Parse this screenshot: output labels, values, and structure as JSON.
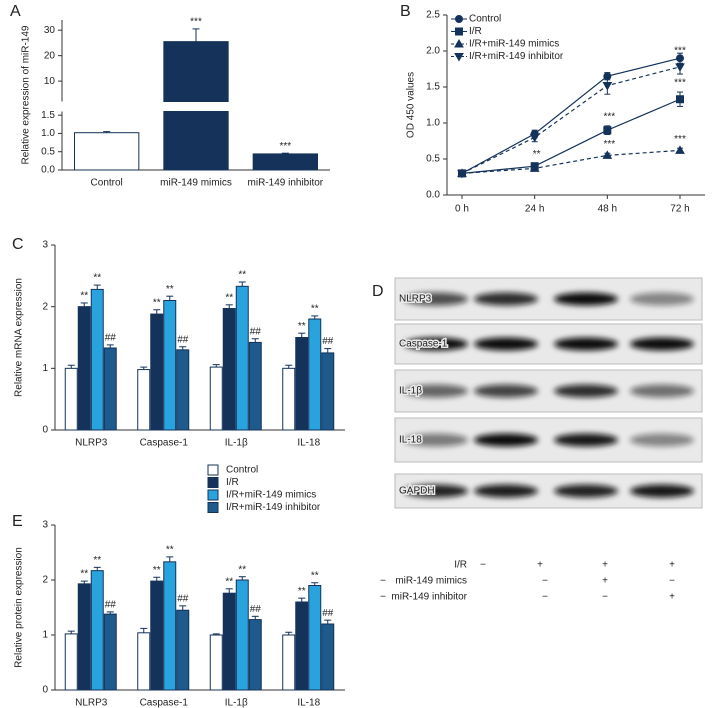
{
  "chart_data": [
    {
      "type": "bar",
      "panel": "A",
      "ylabel": "Relative expression of miR-149",
      "categories": [
        "Control",
        "miR-149 mimics",
        "miR-149 inhibitor"
      ],
      "values": [
        1.02,
        25.5,
        0.44
      ],
      "errors": [
        0.03,
        5.0,
        0.02
      ],
      "annotations": [
        null,
        "***",
        "***"
      ],
      "colors": [
        "#ffffff",
        "#14325a",
        "#14325a"
      ],
      "ylim": [
        0,
        34
      ],
      "y_break": [
        1.6,
        2
      ],
      "yticks": [
        {
          "value": 0,
          "label": "0.0"
        },
        {
          "value": 0.5,
          "label": "0.5"
        },
        {
          "value": 1,
          "label": "1.0"
        },
        {
          "value": 1.5,
          "label": "1.5"
        },
        10,
        20,
        30
      ],
      "legend": "none"
    },
    {
      "type": "line",
      "panel": "B",
      "ylabel": "OD 450 values",
      "categories": [
        "0 h",
        "24 h",
        "48 h",
        "72 h"
      ],
      "series": [
        {
          "name": "Control",
          "color": "#14325a",
          "marker": "circle",
          "dash": false,
          "values": [
            0.3,
            0.85,
            1.65,
            1.9
          ],
          "errors": [
            0.02,
            0.05,
            0.05,
            0.07
          ],
          "annotations": [
            null,
            null,
            null,
            null
          ]
        },
        {
          "name": "I/R",
          "color": "#14325a",
          "marker": "square",
          "dash": false,
          "values": [
            0.3,
            0.4,
            0.9,
            1.33
          ],
          "errors": [
            0.02,
            0.04,
            0.06,
            0.1
          ],
          "annotations": [
            null,
            "**",
            "***",
            "***"
          ]
        },
        {
          "name": "I/R+miR-149 mimics",
          "color": "#14325a",
          "marker": "triangle-up",
          "dash": true,
          "values": [
            0.3,
            0.37,
            0.55,
            0.62
          ],
          "errors": [
            0.02,
            0.03,
            0.03,
            0.03
          ],
          "annotations": [
            null,
            null,
            "***",
            "***"
          ]
        },
        {
          "name": "I/R+miR-149 inhibitor",
          "color": "#14325a",
          "marker": "triangle-down",
          "dash": true,
          "values": [
            0.3,
            0.8,
            1.52,
            1.78
          ],
          "errors": [
            0.02,
            0.06,
            0.12,
            0.1
          ],
          "annotations": [
            null,
            null,
            null,
            "***"
          ]
        }
      ],
      "ylim": [
        0,
        2.5
      ],
      "yticks": [
        {
          "value": 0,
          "label": "0.0"
        },
        {
          "value": 0.5,
          "label": "0.5"
        },
        {
          "value": 1,
          "label": "1.0"
        },
        {
          "value": 1.5,
          "label": "1.5"
        },
        {
          "value": 2,
          "label": "2.0"
        },
        {
          "value": 2.5,
          "label": "2.5"
        }
      ],
      "legend": "upper left"
    },
    {
      "type": "bar",
      "panel": "C",
      "ylabel": "Relative mRNA expression",
      "categories": [
        "NLRP3",
        "Caspase-1",
        "IL-1β",
        "IL-18"
      ],
      "series": [
        {
          "name": "Control",
          "color": "#ffffff",
          "values": [
            1.0,
            0.98,
            1.02,
            1.0
          ],
          "errors": [
            0.05,
            0.04,
            0.04,
            0.05
          ],
          "annotations": [
            null,
            null,
            null,
            null
          ]
        },
        {
          "name": "I/R",
          "color": "#14325a",
          "values": [
            2.0,
            1.88,
            1.97,
            1.5
          ],
          "errors": [
            0.06,
            0.07,
            0.06,
            0.07
          ],
          "annotations": [
            "**",
            "**",
            "**",
            "**"
          ]
        },
        {
          "name": "I/R+miR-149 mimics",
          "color": "#29a3de",
          "values": [
            2.28,
            2.1,
            2.33,
            1.8
          ],
          "errors": [
            0.07,
            0.07,
            0.07,
            0.05
          ],
          "annotations": [
            "**",
            "**",
            "**",
            "**"
          ]
        },
        {
          "name": "I/R+miR-149 inhibitor",
          "color": "#1e5a8c",
          "values": [
            1.33,
            1.3,
            1.42,
            1.25
          ],
          "errors": [
            0.05,
            0.05,
            0.06,
            0.07
          ],
          "annotations": [
            "##",
            "##",
            "##",
            "##"
          ]
        }
      ],
      "ylim": [
        0,
        3
      ],
      "yticks": [
        0,
        1,
        2,
        3
      ],
      "legend": "none"
    },
    {
      "type": "bar",
      "panel": "E",
      "ylabel": "Relative protein expression",
      "categories": [
        "NLRP3",
        "Caspase-1",
        "IL-1β",
        "IL-18"
      ],
      "series": [
        {
          "name": "Control",
          "color": "#ffffff",
          "values": [
            1.02,
            1.04,
            1.0,
            1.0
          ],
          "errors": [
            0.05,
            0.08,
            0.02,
            0.05
          ],
          "annotations": [
            null,
            null,
            null,
            null
          ]
        },
        {
          "name": "I/R",
          "color": "#14325a",
          "values": [
            1.93,
            1.98,
            1.76,
            1.6
          ],
          "errors": [
            0.05,
            0.07,
            0.08,
            0.07
          ],
          "annotations": [
            "**",
            "**",
            "**",
            "**"
          ]
        },
        {
          "name": "I/R+miR-149 mimics",
          "color": "#29a3de",
          "values": [
            2.17,
            2.33,
            2.0,
            1.9
          ],
          "errors": [
            0.06,
            0.09,
            0.06,
            0.05
          ],
          "annotations": [
            "**",
            "**",
            "**",
            "**"
          ]
        },
        {
          "name": "I/R+miR-149 inhibitor",
          "color": "#1e5a8c",
          "values": [
            1.38,
            1.45,
            1.28,
            1.2
          ],
          "errors": [
            0.04,
            0.08,
            0.06,
            0.07
          ],
          "annotations": [
            "##",
            "##",
            "##",
            "##"
          ]
        }
      ],
      "ylim": [
        0,
        3
      ],
      "yticks": [
        0,
        1,
        2,
        3
      ],
      "legend": "above"
    }
  ],
  "blot": {
    "panel": "D",
    "rows": [
      "NLRP3",
      "Caspase-1",
      "IL-1β",
      "IL-18",
      "GAPDH"
    ],
    "conditions": [
      {
        "label": "I/R",
        "signs": [
          "−",
          "+",
          "+",
          "+"
        ]
      },
      {
        "label": "miR-149 mimics",
        "signs": [
          "−",
          "−",
          "+",
          "−"
        ]
      },
      {
        "label": "miR-149 inhibitor",
        "signs": [
          "−",
          "−",
          "−",
          "+"
        ]
      }
    ]
  }
}
